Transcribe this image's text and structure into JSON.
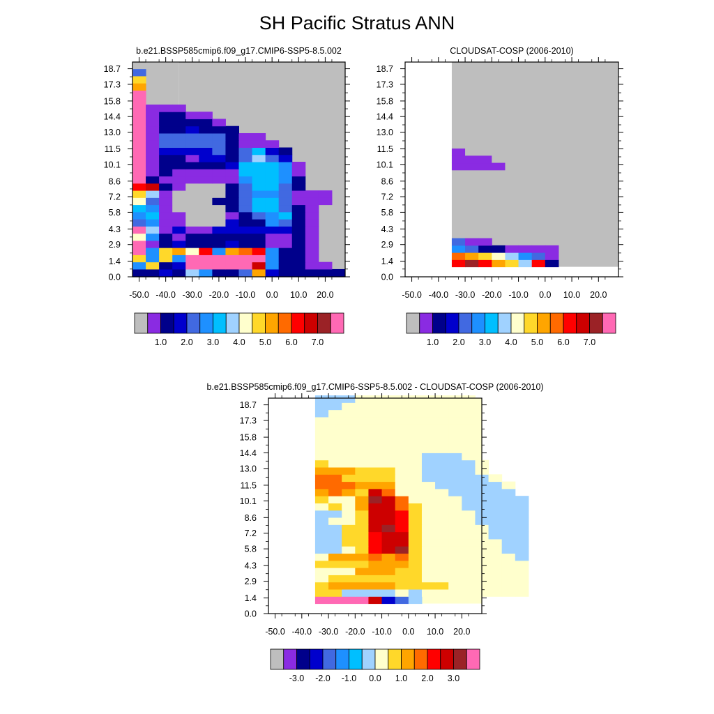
{
  "page_title": "SH Pacific Stratus ANN",
  "colors": {
    "missing": "#bebebe",
    "abs_palette": [
      "#bebebe",
      "#8a2be2",
      "#00008b",
      "#0000cd",
      "#4169e1",
      "#1e90ff",
      "#00bfff",
      "#a0d2ff",
      "#ffffcd",
      "#ffd82a",
      "#ffa500",
      "#ff6a00",
      "#ff0000",
      "#cd0000",
      "#9b2226",
      "#ff69b4"
    ],
    "diff_palette": [
      "#bebebe",
      "#8a2be2",
      "#00008b",
      "#0000cd",
      "#4169e1",
      "#1e90ff",
      "#00bfff",
      "#a0d2ff",
      "#ffffcd",
      "#ffd82a",
      "#ffa500",
      "#ff6a00",
      "#ff0000",
      "#cd0000",
      "#9b2226",
      "#ff69b4"
    ]
  },
  "chart_data": [
    {
      "type": "heatmap",
      "title": "b.e21.BSSP585cmip6.f09_g17.CMIP6-SSP5-8.5.002",
      "xlabel": "",
      "ylabel": "",
      "x_ticks": [
        "-50.0",
        "-40.0",
        "-30.0",
        "-20.0",
        "-10.0",
        "0.0",
        "10.0",
        "20.0"
      ],
      "y_ticks": [
        "0.0",
        "1.4",
        "2.9",
        "4.3",
        "5.8",
        "7.2",
        "8.6",
        "10.1",
        "11.5",
        "13.0",
        "14.4",
        "15.8",
        "17.3",
        "18.7"
      ],
      "xlim": [
        -52.5,
        27.5
      ],
      "ylim": [
        0,
        19.3
      ],
      "colorbar_labels": [
        "1.0",
        "2.0",
        "3.0",
        "4.0",
        "5.0",
        "6.0",
        "7.0"
      ],
      "cell_note": "rows: bottom-to-top, 0.66 km tall; columns: 5 deg lon wide from -52.5; values are palette indices",
      "rows": [
        [
          2,
          2,
          3,
          2,
          7,
          5,
          2,
          2,
          4,
          10,
          3,
          2,
          2,
          2,
          2,
          2
        ],
        [
          5,
          9,
          2,
          3,
          15,
          15,
          15,
          15,
          15,
          13,
          5,
          2,
          2,
          1,
          1
        ],
        [
          9,
          5,
          9,
          5,
          15,
          15,
          15,
          15,
          15,
          15,
          5,
          2,
          2,
          1
        ],
        [
          15,
          5,
          9,
          10,
          8,
          12,
          5,
          10,
          11,
          12,
          5,
          2,
          2,
          1
        ],
        [
          15,
          1,
          2,
          3,
          2,
          2,
          2,
          3,
          2,
          2,
          1,
          1,
          2,
          1
        ],
        [
          8,
          5,
          2,
          1,
          2,
          2,
          2,
          2,
          2,
          2,
          1,
          1,
          2,
          1
        ],
        [
          15,
          7,
          1,
          3,
          1,
          1,
          3,
          3,
          3,
          3,
          3,
          3,
          2,
          1
        ],
        [
          4,
          5,
          1,
          1,
          0,
          0,
          0,
          3,
          2,
          2,
          5,
          4,
          2,
          1
        ],
        [
          5,
          6,
          1,
          1,
          0,
          0,
          0,
          1,
          2,
          4,
          5,
          6,
          2,
          1
        ],
        [
          6,
          5,
          1,
          0,
          0,
          0,
          0,
          2,
          4,
          6,
          6,
          4,
          2,
          1
        ],
        [
          8,
          4,
          1,
          0,
          0,
          0,
          2,
          2,
          4,
          6,
          6,
          4,
          1,
          1,
          1
        ],
        [
          9,
          7,
          1,
          0,
          0,
          0,
          0,
          2,
          4,
          5,
          5,
          4,
          1,
          1,
          1
        ],
        [
          12,
          13,
          2,
          1,
          0,
          0,
          0,
          2,
          4,
          6,
          6,
          4,
          2
        ],
        [
          15,
          2,
          1,
          1,
          1,
          1,
          1,
          1,
          5,
          6,
          6,
          5,
          2
        ],
        [
          15,
          1,
          2,
          1,
          1,
          1,
          1,
          1,
          6,
          6,
          6,
          5,
          1
        ],
        [
          15,
          1,
          2,
          2,
          2,
          2,
          2,
          3,
          6,
          6,
          6,
          5,
          1
        ],
        [
          15,
          1,
          2,
          2,
          1,
          3,
          3,
          2,
          4,
          7,
          4,
          3
        ],
        [
          15,
          1,
          3,
          3,
          3,
          3,
          4,
          2,
          4,
          6,
          3,
          2
        ],
        [
          15,
          1,
          4,
          4,
          4,
          4,
          4,
          2,
          1,
          1,
          1
        ],
        [
          15,
          1,
          4,
          4,
          4,
          4,
          4,
          2,
          1,
          1
        ],
        [
          15,
          1,
          2,
          2,
          3,
          2,
          2,
          2
        ],
        [
          15,
          1,
          2,
          2,
          2,
          2,
          1
        ],
        [
          15,
          1,
          2,
          2,
          1,
          1
        ],
        [
          15,
          1,
          1,
          1
        ],
        [
          15
        ],
        [
          15
        ],
        [
          10
        ],
        [
          9
        ],
        [
          4
        ],
        [
          0
        ]
      ]
    },
    {
      "type": "heatmap",
      "title": "CLOUDSAT-COSP (2006-2010)",
      "xlabel": "",
      "ylabel": "",
      "x_ticks": [
        "-50.0",
        "-40.0",
        "-30.0",
        "-20.0",
        "-10.0",
        "0.0",
        "10.0",
        "20.0"
      ],
      "y_ticks": [
        "0.0",
        "1.4",
        "2.9",
        "4.3",
        "5.8",
        "7.2",
        "8.6",
        "10.1",
        "11.5",
        "13.0",
        "14.4",
        "15.8",
        "17.3",
        "18.7"
      ],
      "xlim": [
        -52.5,
        27.5
      ],
      "ylim": [
        0,
        19.3
      ],
      "colorbar_labels": [
        "1.0",
        "2.0",
        "3.0",
        "4.0",
        "5.0",
        "6.0",
        "7.0"
      ],
      "cell_note": "grey background from x=-35 upward of y=0.9; colored rows start at x=-35",
      "rows": [
        [
          12,
          14,
          12,
          10,
          9,
          7,
          12,
          2
        ],
        [
          11,
          10,
          9,
          8,
          7,
          5,
          4,
          1
        ],
        [
          5,
          4,
          2,
          2,
          1,
          1,
          1,
          1
        ],
        [
          4,
          1,
          1
        ]
      ],
      "upper_cells": [
        {
          "row": 16,
          "x0": -35,
          "x1": -15,
          "color": 1
        },
        {
          "row": 17,
          "x0": -35,
          "x1": -20,
          "color": 1
        },
        {
          "row": 18,
          "x0": -35,
          "x1": -30,
          "color": 1
        }
      ]
    },
    {
      "type": "heatmap",
      "title": "b.e21.BSSP585cmip6.f09_g17.CMIP6-SSP5-8.5.002 - CLOUDSAT-COSP (2006-2010)",
      "xlabel": "",
      "ylabel": "",
      "x_ticks": [
        "-50.0",
        "-40.0",
        "-30.0",
        "-20.0",
        "-10.0",
        "0.0",
        "10.0",
        "20.0"
      ],
      "y_ticks": [
        "0.0",
        "1.4",
        "2.9",
        "4.3",
        "5.8",
        "7.2",
        "8.6",
        "10.1",
        "11.5",
        "13.0",
        "14.4",
        "15.8",
        "17.3",
        "18.7"
      ],
      "xlim": [
        -52.5,
        27.5
      ],
      "ylim": [
        0,
        19.3
      ],
      "colorbar_labels": [
        "-3.0",
        "-2.0",
        "-1.0",
        "0.0",
        "1.0",
        "2.0",
        "3.0"
      ],
      "cell_note": "rows from x=-35; values are palette indices",
      "rows": [
        [
          15,
          15,
          15,
          15,
          13,
          3,
          4,
          7
        ],
        [
          9,
          9,
          7,
          7,
          7,
          7,
          8,
          7,
          8,
          8,
          8,
          8,
          8,
          8,
          8,
          8
        ],
        [
          9,
          10,
          10,
          10,
          10,
          10,
          9,
          9,
          9,
          9,
          8,
          8,
          8,
          8,
          8,
          8
        ],
        [
          8,
          9,
          9,
          9,
          9,
          9,
          9,
          9,
          8,
          8,
          8,
          8,
          8,
          8,
          8,
          8
        ],
        [
          8,
          8,
          8,
          10,
          10,
          10,
          9,
          9,
          8,
          8,
          8,
          8,
          8,
          8,
          8,
          8
        ],
        [
          9,
          9,
          9,
          9,
          10,
          10,
          10,
          9,
          8,
          8,
          8,
          8,
          8,
          8,
          8,
          8
        ],
        [
          8,
          10,
          10,
          10,
          11,
          10,
          11,
          9,
          8,
          8,
          8,
          8,
          8,
          8,
          8,
          7
        ],
        [
          7,
          7,
          8,
          9,
          12,
          13,
          14,
          9,
          8,
          8,
          8,
          8,
          8,
          8,
          7,
          7
        ],
        [
          7,
          7,
          9,
          9,
          12,
          13,
          13,
          9,
          8,
          8,
          8,
          8,
          8,
          8,
          7,
          7
        ],
        [
          7,
          7,
          9,
          9,
          12,
          13,
          13,
          9,
          8,
          8,
          8,
          8,
          8,
          7,
          7,
          7
        ],
        [
          7,
          7,
          9,
          9,
          13,
          14,
          12,
          9,
          8,
          8,
          8,
          8,
          8,
          7,
          7,
          7
        ],
        [
          7,
          8,
          8,
          9,
          13,
          13,
          12,
          9,
          8,
          8,
          8,
          8,
          7,
          7,
          7,
          7
        ],
        [
          7,
          7,
          8,
          9,
          13,
          13,
          12,
          9,
          8,
          8,
          8,
          8,
          7,
          7,
          7,
          7
        ],
        [
          8,
          9,
          8,
          10,
          13,
          13,
          11,
          9,
          8,
          8,
          8,
          7,
          7,
          7,
          7,
          7
        ],
        [
          9,
          8,
          8,
          10,
          14,
          13,
          11,
          8,
          8,
          8,
          8,
          7,
          7,
          7,
          7,
          7
        ],
        [
          10,
          11,
          10,
          9,
          13,
          11,
          8,
          8,
          8,
          8,
          7,
          7,
          7,
          7,
          7
        ],
        [
          11,
          11,
          11,
          10,
          10,
          10,
          8,
          8,
          8,
          7,
          7,
          7,
          7,
          7,
          8
        ],
        [
          11,
          11,
          9,
          9,
          9,
          9,
          8,
          8,
          7,
          7,
          7,
          7,
          7,
          8
        ],
        [
          10,
          10,
          10,
          9,
          9,
          9,
          8,
          8,
          7,
          7,
          7,
          7,
          8
        ],
        [
          9,
          8,
          8,
          8,
          8,
          8,
          8,
          8,
          7,
          7,
          7,
          7,
          8
        ],
        [
          8,
          8,
          8,
          8,
          8,
          8,
          8,
          8,
          7,
          7,
          7,
          8
        ],
        [
          8,
          8,
          8,
          8,
          8,
          8,
          8,
          8,
          8,
          8,
          8,
          8
        ],
        [
          8,
          8,
          8,
          8,
          8,
          8,
          8,
          8,
          8,
          8,
          8,
          8
        ],
        [
          8,
          8,
          8,
          8,
          8,
          8,
          8,
          8,
          8,
          8,
          8,
          8
        ],
        [
          8,
          8,
          8,
          8,
          8,
          8,
          8,
          8,
          8,
          8,
          8,
          8
        ],
        [
          8,
          8,
          8,
          8,
          8,
          8,
          8,
          8,
          8,
          8,
          8,
          8
        ],
        [
          7,
          8,
          8,
          8,
          8,
          8,
          8,
          8,
          8,
          8,
          8,
          8
        ],
        [
          7,
          7,
          8,
          8,
          8,
          8,
          8,
          8,
          8,
          8,
          8,
          8
        ],
        [
          7,
          7,
          7,
          8,
          8,
          8,
          8,
          8,
          8,
          8,
          8,
          8
        ]
      ]
    }
  ]
}
